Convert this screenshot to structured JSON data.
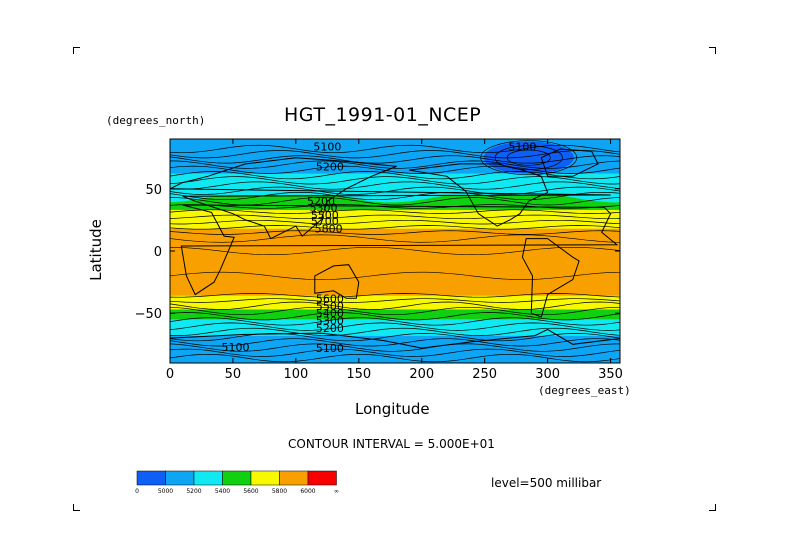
{
  "chart_data": {
    "type": "heatmap",
    "title": "HGT_1991-01_NCEP",
    "xlabel": "Longitude",
    "ylabel": "Latitude",
    "x_units": "(degrees_east)",
    "y_units": "(degrees_north)",
    "xlim": [
      0,
      357.5
    ],
    "ylim": [
      -90,
      90
    ],
    "x_ticks": [
      0,
      50,
      100,
      150,
      200,
      250,
      300,
      350
    ],
    "y_ticks": [
      -50,
      0,
      50
    ],
    "y_tick_labels": [
      "−50",
      "0",
      "50"
    ],
    "contour_interval_label": "CONTOUR INTERVAL = 5.000E+01",
    "level_label": "level=500 millibar",
    "colorbar": {
      "bounds_labels": [
        "0",
        "5000",
        "5200",
        "5400",
        "5600",
        "5800",
        "6000",
        "∞"
      ],
      "colors": [
        "#0d5ff5",
        "#0ea5f5",
        "#10e8f2",
        "#10d010",
        "#f8f800",
        "#f8a000",
        "#f80000"
      ]
    },
    "contour_labels": [
      {
        "text": "5100",
        "lon": 125,
        "lat": 84
      },
      {
        "text": "5200",
        "lon": 127,
        "lat": 68
      },
      {
        "text": "5100",
        "lon": 280,
        "lat": 84
      },
      {
        "text": "5200",
        "lon": 120,
        "lat": 40
      },
      {
        "text": "5300",
        "lon": 122,
        "lat": 35
      },
      {
        "text": "5500",
        "lon": 123,
        "lat": 29
      },
      {
        "text": "5700",
        "lon": 123,
        "lat": 24
      },
      {
        "text": "5800",
        "lon": 126,
        "lat": 18
      },
      {
        "text": "5600",
        "lon": 127,
        "lat": -38
      },
      {
        "text": "5500",
        "lon": 127,
        "lat": -44
      },
      {
        "text": "5400",
        "lon": 127,
        "lat": -50
      },
      {
        "text": "5300",
        "lon": 127,
        "lat": -56
      },
      {
        "text": "5200",
        "lon": 127,
        "lat": -62
      },
      {
        "text": "5100",
        "lon": 52,
        "lat": -77
      },
      {
        "text": "5100",
        "lon": 127,
        "lat": -78
      }
    ],
    "zones": [
      {
        "lat_min": -90,
        "lat_max": -68,
        "color": "#0ea5f5"
      },
      {
        "lat_min": -68,
        "lat_max": -55,
        "color": "#10e8f2"
      },
      {
        "lat_min": -55,
        "lat_max": -47,
        "color": "#10d010"
      },
      {
        "lat_min": -47,
        "lat_max": -36,
        "color": "#f8f800"
      },
      {
        "lat_min": -36,
        "lat_max": 18,
        "color": "#f8a000"
      },
      {
        "lat_min": 18,
        "lat_max": 33,
        "color": "#f8f800"
      },
      {
        "lat_min": 33,
        "lat_max": 45,
        "color": "#10d010"
      },
      {
        "lat_min": 45,
        "lat_max": 62,
        "color": "#10e8f2"
      },
      {
        "lat_min": 62,
        "lat_max": 90,
        "color": "#0ea5f5"
      }
    ],
    "low_center": {
      "lon": 285,
      "lat": 75,
      "color": "#0d5ff5"
    }
  }
}
